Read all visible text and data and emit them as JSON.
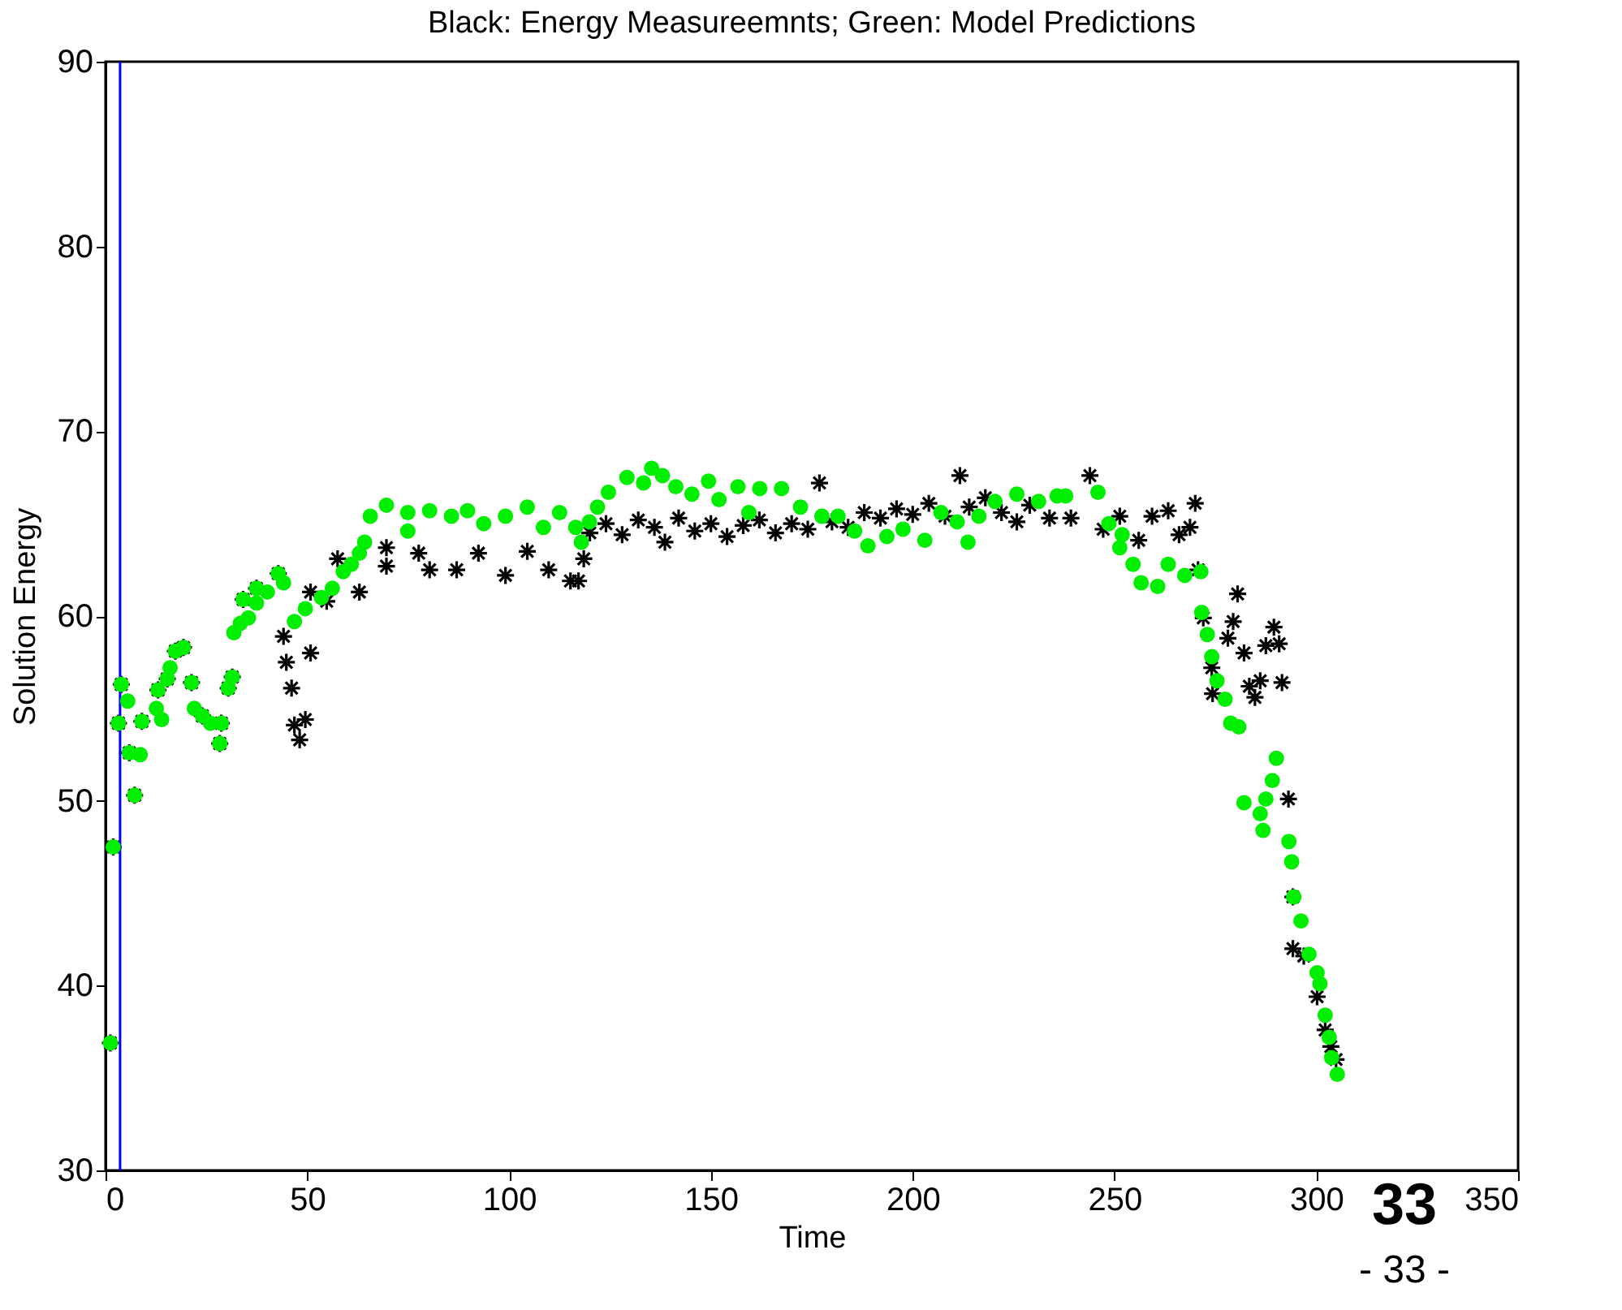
{
  "chart_data": {
    "type": "scatter",
    "title": "Black: Energy Measureemnts; Green: Model Predictions",
    "xlabel": "Time",
    "ylabel": "Solution Energy",
    "xlim": [
      0,
      350
    ],
    "xticks": [
      0,
      50,
      100,
      150,
      200,
      250,
      300,
      350
    ],
    "ylim": [
      30,
      90
    ],
    "yticks": [
      30,
      40,
      50,
      60,
      70,
      80,
      90
    ],
    "grid": false,
    "ref_lines": [
      {
        "axis": "x",
        "value": 3.6,
        "color": "#0000ff"
      }
    ],
    "annotations": [
      "33",
      "- 33 -"
    ],
    "series": [
      {
        "color": "#000000",
        "marker": "cross",
        "x": [
          1.2,
          1.9,
          3.2,
          3.9,
          5.9,
          7.2,
          9,
          13,
          15.3,
          17.3,
          19.3,
          21.3,
          24,
          28.3,
          28.7,
          30.4,
          31.4,
          34.1,
          37.4,
          42.8,
          44.1,
          44.8,
          46.1,
          46.8,
          48.1,
          49.5,
          50.8,
          50.8,
          54.8,
          57.5,
          62.9,
          69.6,
          69.6,
          77.6,
          80.3,
          87,
          92.4,
          99.1,
          104.5,
          109.8,
          115.2,
          117.2,
          118.5,
          120,
          124,
          128,
          132,
          136,
          138.6,
          142,
          146,
          150,
          154,
          158,
          162,
          166,
          170,
          174,
          176.9,
          180,
          184,
          188,
          192,
          196,
          200,
          204,
          208,
          211.7,
          214,
          218,
          222,
          225.8,
          229,
          233.9,
          239.2,
          243.9,
          247.2,
          251.3,
          256,
          259.3,
          263.3,
          266,
          268.7,
          270,
          270.7,
          272,
          274.1,
          274.3,
          278.1,
          279.4,
          280.5,
          282.1,
          283.4,
          284.8,
          286.1,
          287.5,
          289.5,
          290.8,
          291.5,
          293.1,
          294.2,
          294.2,
          296.9,
          300.2,
          302.2,
          303.6,
          304.9
        ],
        "values": [
          36.9,
          47.5,
          54.2,
          56.3,
          52.6,
          50.3,
          54.3,
          56.0,
          56.6,
          58.1,
          58.3,
          56.4,
          54.6,
          53.1,
          54.2,
          56.1,
          56.7,
          60.9,
          61.5,
          62.3,
          58.9,
          57.5,
          56.1,
          54.1,
          53.3,
          54.4,
          58.0,
          61.3,
          60.8,
          63.1,
          61.3,
          63.7,
          62.7,
          63.4,
          62.5,
          62.5,
          63.4,
          62.2,
          63.5,
          62.5,
          61.9,
          61.9,
          63.1,
          64.5,
          65.0,
          64.4,
          65.2,
          64.8,
          64.0,
          65.3,
          64.6,
          65.0,
          64.3,
          64.9,
          65.2,
          64.5,
          65.0,
          64.7,
          67.2,
          65.1,
          64.8,
          65.6,
          65.3,
          65.8,
          65.5,
          66.1,
          65.4,
          67.6,
          65.9,
          66.4,
          65.6,
          65.1,
          66.0,
          65.3,
          65.3,
          67.6,
          64.7,
          65.4,
          64.1,
          65.4,
          65.7,
          64.4,
          64.8,
          66.1,
          62.5,
          59.9,
          57.2,
          55.8,
          58.8,
          59.7,
          61.2,
          58.0,
          56.2,
          55.6,
          56.5,
          58.4,
          59.4,
          58.5,
          56.4,
          50.1,
          44.8,
          42.0,
          41.6,
          39.4,
          37.6,
          36.7,
          36.0
        ]
      },
      {
        "color": "#00ee00",
        "marker": "circle",
        "x": [
          1.2,
          1.9,
          7.2,
          5.9,
          8.6,
          3.2,
          5.5,
          3.9,
          9.0,
          13.0,
          12.6,
          13.9,
          15.3,
          16.0,
          17.3,
          19.3,
          21.3,
          22,
          24,
          26,
          28.7,
          28.3,
          30.4,
          31.4,
          31.8,
          33.4,
          35.4,
          34.1,
          37.4,
          37.4,
          40.1,
          42.8,
          44.1,
          46.8,
          49.5,
          53.5,
          56.2,
          58.9,
          60.9,
          62.9,
          64.2,
          65.6,
          69.6,
          74.9,
          74.9,
          80.3,
          85.7,
          89.7,
          93.7,
          99.1,
          104.5,
          108.5,
          112.5,
          116.5,
          117.9,
          119.9,
          121.9,
          124.6,
          129.2,
          133.3,
          135.3,
          138,
          141.3,
          145.3,
          149.4,
          152,
          156.7,
          159.4,
          162.1,
          167.5,
          172.2,
          177.5,
          181.5,
          185.6,
          188.9,
          193.6,
          197.6,
          203,
          207,
          211,
          213.7,
          216.4,
          220.4,
          225.8,
          231.2,
          235.8,
          237.9,
          245.9,
          248.6,
          251.3,
          251.9,
          254.6,
          256.6,
          260.7,
          263.3,
          267.4,
          271.4,
          271.6,
          273,
          274.1,
          275.4,
          277.4,
          278.8,
          280.8,
          282.1,
          286.1,
          286.8,
          287.5,
          289.1,
          290.1,
          293.2,
          293.9,
          294.4,
          296.2,
          298.2,
          300.2,
          300.9,
          302.2,
          303.2,
          303.8,
          305.2
        ],
        "values": [
          36.9,
          47.5,
          50.3,
          52.6,
          52.5,
          54.2,
          55.4,
          56.3,
          54.3,
          56.0,
          55.0,
          54.4,
          56.6,
          57.2,
          58.1,
          58.3,
          56.4,
          55.0,
          54.6,
          54.2,
          54.2,
          53.1,
          56.1,
          56.7,
          59.1,
          59.6,
          59.9,
          60.9,
          60.7,
          61.5,
          61.3,
          62.3,
          61.8,
          59.7,
          60.4,
          61.0,
          61.5,
          62.4,
          62.8,
          63.4,
          64.0,
          65.4,
          66.0,
          65.6,
          64.6,
          65.7,
          65.4,
          65.7,
          65.0,
          65.4,
          65.9,
          64.8,
          65.6,
          64.8,
          64.0,
          65.1,
          65.9,
          66.7,
          67.5,
          67.2,
          68.0,
          67.6,
          67.0,
          66.6,
          67.3,
          66.3,
          67.0,
          65.6,
          66.9,
          66.9,
          65.9,
          65.4,
          65.4,
          64.6,
          63.8,
          64.3,
          64.7,
          64.1,
          65.6,
          65.1,
          64.0,
          65.4,
          66.2,
          66.6,
          66.2,
          66.5,
          66.5,
          66.7,
          65.0,
          63.7,
          64.4,
          62.8,
          61.8,
          61.6,
          62.8,
          62.2,
          62.4,
          60.2,
          59.0,
          57.8,
          56.5,
          55.5,
          54.2,
          54.0,
          49.9,
          49.3,
          48.4,
          50.1,
          51.1,
          52.3,
          47.8,
          46.7,
          44.8,
          43.5,
          41.7,
          40.7,
          40.1,
          38.4,
          37.2,
          36.1,
          35.2
        ]
      }
    ]
  }
}
